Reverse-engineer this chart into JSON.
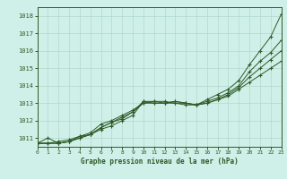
{
  "title": "Graphe pression niveau de la mer (hPa)",
  "bg_color": "#cff0e8",
  "grid_color": "#b0d8cc",
  "line_color": "#2d5a27",
  "x_min": 0,
  "x_max": 23,
  "y_min": 1010.5,
  "y_max": 1018.5,
  "yticks": [
    1011,
    1012,
    1013,
    1014,
    1015,
    1016,
    1017,
    1018
  ],
  "xticks": [
    0,
    1,
    2,
    3,
    4,
    5,
    6,
    7,
    8,
    9,
    10,
    11,
    12,
    13,
    14,
    15,
    16,
    17,
    18,
    19,
    20,
    21,
    22,
    23
  ],
  "series": [
    [
      1010.7,
      1011.0,
      1010.7,
      1010.8,
      1011.0,
      1011.2,
      1011.5,
      1011.7,
      1012.0,
      1012.3,
      1013.1,
      1013.1,
      1013.0,
      1013.1,
      1013.0,
      1012.9,
      1013.2,
      1013.5,
      1013.8,
      1014.3,
      1015.2,
      1016.0,
      1016.8,
      1018.1
    ],
    [
      1010.7,
      1010.7,
      1010.7,
      1010.8,
      1011.0,
      1011.2,
      1011.6,
      1011.9,
      1012.2,
      1012.5,
      1013.0,
      1013.0,
      1013.0,
      1013.0,
      1012.9,
      1012.9,
      1013.0,
      1013.2,
      1013.4,
      1013.8,
      1014.2,
      1014.6,
      1015.0,
      1015.4
    ],
    [
      1010.7,
      1010.7,
      1010.8,
      1010.9,
      1011.1,
      1011.3,
      1011.8,
      1012.0,
      1012.3,
      1012.6,
      1013.0,
      1013.1,
      1013.1,
      1013.0,
      1013.0,
      1012.9,
      1013.1,
      1013.3,
      1013.6,
      1014.0,
      1014.8,
      1015.4,
      1015.9,
      1016.6
    ],
    [
      1010.7,
      1010.7,
      1010.7,
      1010.8,
      1011.1,
      1011.2,
      1011.6,
      1011.9,
      1012.1,
      1012.5,
      1013.1,
      1013.0,
      1013.0,
      1013.1,
      1013.0,
      1012.9,
      1013.0,
      1013.2,
      1013.5,
      1013.9,
      1014.5,
      1015.0,
      1015.5,
      1016.0
    ]
  ]
}
